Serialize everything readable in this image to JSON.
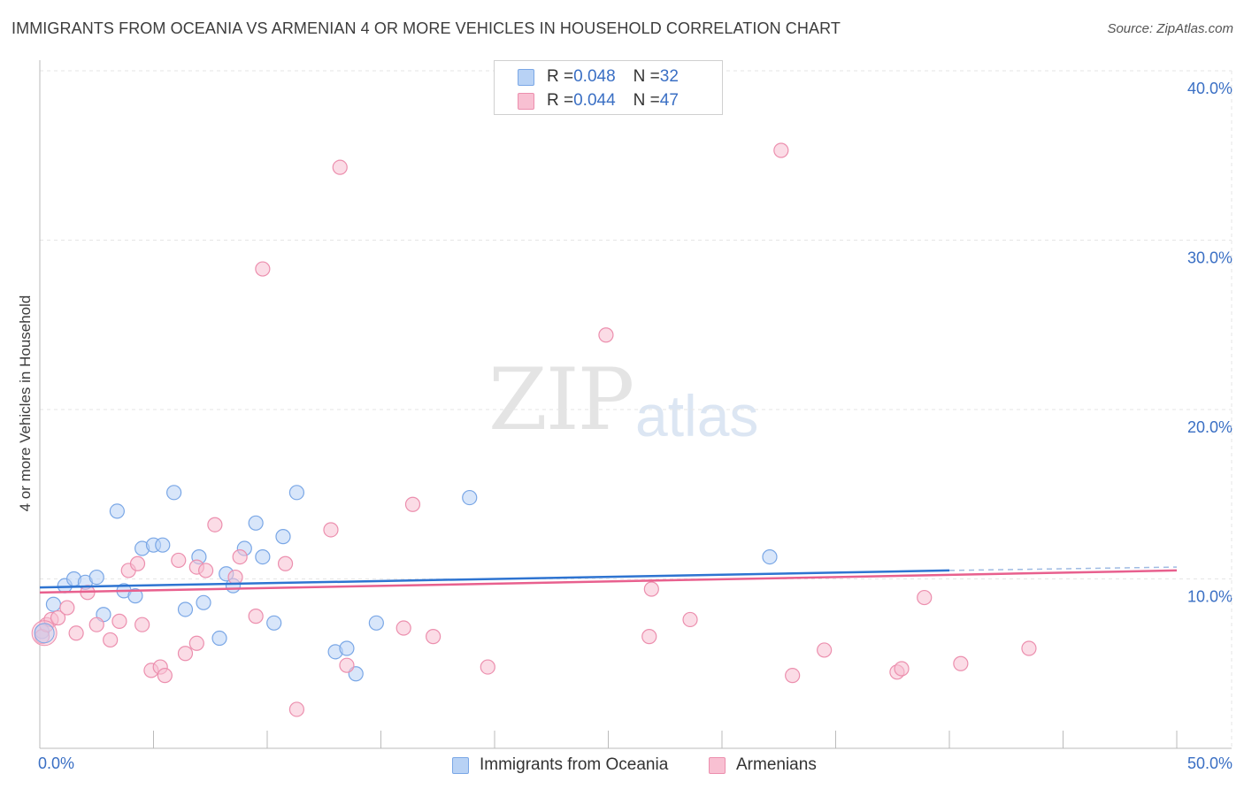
{
  "header": {
    "title": "IMMIGRANTS FROM OCEANIA VS ARMENIAN 4 OR MORE VEHICLES IN HOUSEHOLD CORRELATION CHART",
    "source": "Source: ZipAtlas.com"
  },
  "watermark": {
    "zip": "ZIP",
    "atlas": "atlas"
  },
  "legend": {
    "rows": [
      {
        "r_label": "R = ",
        "r_value": "0.048",
        "n_label": "N = ",
        "n_value": "32"
      },
      {
        "r_label": "R = ",
        "r_value": "0.044",
        "n_label": "N = ",
        "n_value": "47"
      }
    ]
  },
  "colors": {
    "blue_fill": "#b8d2f5",
    "blue_stroke": "#7aa7e6",
    "blue_line": "#2e74d1",
    "pink_fill": "#f8c0d2",
    "pink_stroke": "#ec8fae",
    "pink_line": "#e8608e",
    "axis_text": "#3a6fc4",
    "grid": "#e6e6e6"
  },
  "chart_data": {
    "type": "scatter",
    "title": "IMMIGRANTS FROM OCEANIA VS ARMENIAN 4 OR MORE VEHICLES IN HOUSEHOLD CORRELATION CHART",
    "xlabel": "",
    "ylabel": "4 or more Vehicles in Household",
    "xlim": [
      0,
      50
    ],
    "ylim": [
      0,
      40
    ],
    "x_tick_labels": [
      "0.0%",
      "50.0%"
    ],
    "y_ticks": [
      10,
      20,
      30,
      40
    ],
    "y_tick_labels": [
      "10.0%",
      "20.0%",
      "30.0%",
      "40.0%"
    ],
    "series": [
      {
        "name": "Immigrants from Oceania",
        "color": "blue",
        "r": 0.048,
        "n": 32,
        "trend": {
          "x0": 0,
          "y0": 9.5,
          "x1": 40,
          "y1": 10.5,
          "dash_to_x": 50,
          "dash_to_y": 10.7
        },
        "points": [
          [
            0.1,
            6.9
          ],
          [
            0.6,
            8.5
          ],
          [
            1.1,
            9.6
          ],
          [
            1.5,
            10.0
          ],
          [
            2.0,
            9.8
          ],
          [
            2.5,
            10.1
          ],
          [
            2.8,
            7.9
          ],
          [
            3.4,
            14.0
          ],
          [
            3.7,
            9.3
          ],
          [
            4.2,
            9.0
          ],
          [
            4.5,
            11.8
          ],
          [
            5.0,
            12.0
          ],
          [
            5.4,
            12.0
          ],
          [
            5.9,
            15.1
          ],
          [
            6.4,
            8.2
          ],
          [
            7.0,
            11.3
          ],
          [
            7.2,
            8.6
          ],
          [
            7.9,
            6.5
          ],
          [
            8.2,
            10.3
          ],
          [
            8.5,
            9.6
          ],
          [
            9.0,
            11.8
          ],
          [
            9.5,
            13.3
          ],
          [
            9.8,
            11.3
          ],
          [
            10.3,
            7.4
          ],
          [
            10.7,
            12.5
          ],
          [
            11.3,
            15.1
          ],
          [
            13.0,
            5.7
          ],
          [
            13.5,
            5.9
          ],
          [
            13.9,
            4.4
          ],
          [
            14.8,
            7.4
          ],
          [
            18.9,
            14.8
          ],
          [
            32.1,
            11.3
          ]
        ]
      },
      {
        "name": "Armenians",
        "color": "pink",
        "r": 0.044,
        "n": 47,
        "trend": {
          "x0": 0,
          "y0": 9.2,
          "x1": 50,
          "y1": 10.5
        },
        "points": [
          [
            0.1,
            6.6
          ],
          [
            0.3,
            7.3
          ],
          [
            0.5,
            7.6
          ],
          [
            0.8,
            7.7
          ],
          [
            1.2,
            8.3
          ],
          [
            1.6,
            6.8
          ],
          [
            2.1,
            9.2
          ],
          [
            2.5,
            7.3
          ],
          [
            3.1,
            6.4
          ],
          [
            3.5,
            7.5
          ],
          [
            3.9,
            10.5
          ],
          [
            4.3,
            10.9
          ],
          [
            4.5,
            7.3
          ],
          [
            4.9,
            4.6
          ],
          [
            5.3,
            4.8
          ],
          [
            5.5,
            4.3
          ],
          [
            6.1,
            11.1
          ],
          [
            6.4,
            5.6
          ],
          [
            6.9,
            6.2
          ],
          [
            6.9,
            10.7
          ],
          [
            7.3,
            10.5
          ],
          [
            7.7,
            13.2
          ],
          [
            8.6,
            10.1
          ],
          [
            8.8,
            11.3
          ],
          [
            9.5,
            7.8
          ],
          [
            9.8,
            28.3
          ],
          [
            10.8,
            10.9
          ],
          [
            11.3,
            2.3
          ],
          [
            12.8,
            12.9
          ],
          [
            13.2,
            34.3
          ],
          [
            13.5,
            4.9
          ],
          [
            16.0,
            7.1
          ],
          [
            16.4,
            14.4
          ],
          [
            17.3,
            6.6
          ],
          [
            19.7,
            4.8
          ],
          [
            24.9,
            24.4
          ],
          [
            26.8,
            6.6
          ],
          [
            26.9,
            9.4
          ],
          [
            28.6,
            7.6
          ],
          [
            32.6,
            35.3
          ],
          [
            33.1,
            4.3
          ],
          [
            34.5,
            5.8
          ],
          [
            37.7,
            4.5
          ],
          [
            37.9,
            4.7
          ],
          [
            38.9,
            8.9
          ],
          [
            40.5,
            5.0
          ],
          [
            43.5,
            5.9
          ]
        ]
      }
    ]
  },
  "bottom_legend": {
    "items": [
      {
        "label": "Immigrants from Oceania"
      },
      {
        "label": "Armenians"
      }
    ]
  }
}
